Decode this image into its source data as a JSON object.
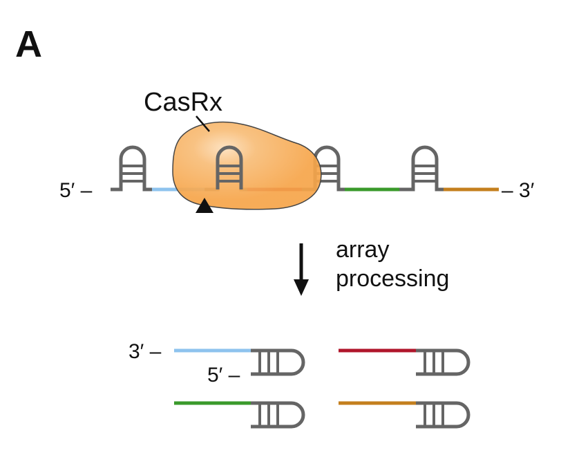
{
  "panel": {
    "label": "A"
  },
  "protein": {
    "name": "CasRx",
    "color": "#f6a54a"
  },
  "array": {
    "end_5": "5′ –",
    "end_3": "– 3′",
    "spacers": [
      {
        "color": "#8ec3ee"
      },
      {
        "color": "#b0162b"
      },
      {
        "color": "#3a9a2b"
      },
      {
        "color": "#c47f1e"
      }
    ]
  },
  "step": {
    "line1": "array",
    "line2": "processing"
  },
  "products": {
    "end_3": "3′ –",
    "end_5": "5′ –"
  },
  "colors": {
    "backbone": "#656565",
    "text": "#111111"
  }
}
